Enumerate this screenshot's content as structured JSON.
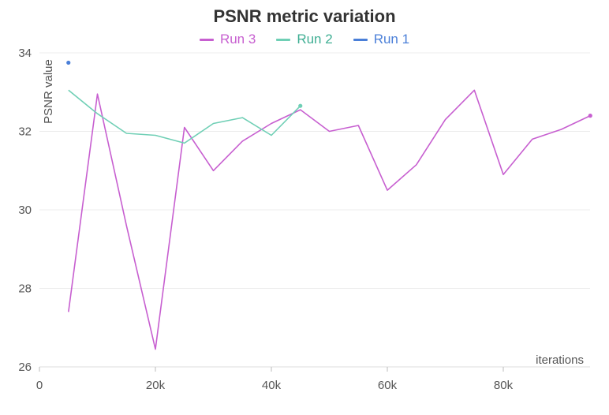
{
  "chart_data": {
    "type": "line",
    "title": "PSNR metric variation",
    "xlabel": "iterations",
    "ylabel": "PSNR value",
    "xlim": [
      0,
      95000
    ],
    "ylim": [
      26,
      34
    ],
    "grid": true,
    "legend_position": "top-center",
    "x_ticks": [
      0,
      20000,
      40000,
      60000,
      80000
    ],
    "x_tick_labels": [
      "0",
      "20k",
      "40k",
      "60k",
      "80k"
    ],
    "y_ticks": [
      26,
      28,
      30,
      32,
      34
    ],
    "y_tick_labels": [
      "26",
      "28",
      "30",
      "32",
      "34"
    ],
    "series": [
      {
        "name": "Run 3",
        "color": "#c75fd0",
        "x": [
          5000,
          10000,
          15000,
          20000,
          25000,
          30000,
          35000,
          40000,
          45000,
          50000,
          55000,
          60000,
          65000,
          70000,
          75000,
          80000,
          85000,
          90000,
          95000
        ],
        "y": [
          27.4,
          32.95,
          29.6,
          26.45,
          32.1,
          31.0,
          31.75,
          32.2,
          32.55,
          32.0,
          32.15,
          30.5,
          31.15,
          32.3,
          33.05,
          30.9,
          31.8,
          32.05,
          32.4
        ]
      },
      {
        "name": "Run 2",
        "color": "#6fcfb5",
        "x": [
          5000,
          10000,
          15000,
          20000,
          25000,
          30000,
          35000,
          40000,
          45000
        ],
        "y": [
          33.05,
          32.45,
          31.95,
          31.9,
          31.7,
          32.2,
          32.35,
          31.9,
          32.65
        ]
      },
      {
        "name": "Run 1",
        "color": "#4a7fd8",
        "x": [
          5000
        ],
        "y": [
          33.75
        ]
      }
    ]
  }
}
